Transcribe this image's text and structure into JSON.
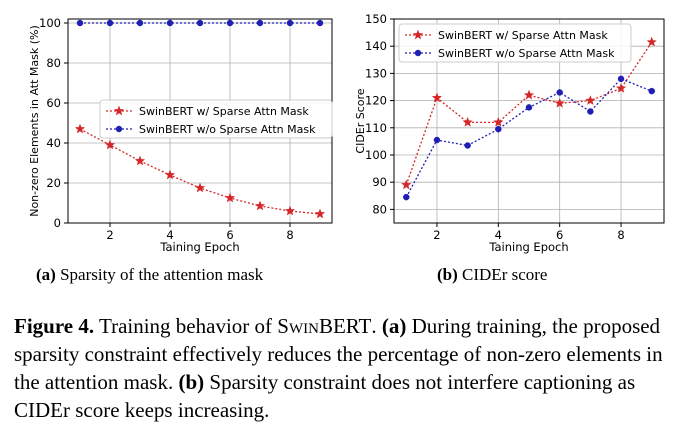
{
  "charts": [
    {
      "type": "line",
      "xlabel": "Taining Epoch",
      "ylabel": "Non-zero Elements in Att Mask (%)",
      "xlim": [
        0.6,
        9.4
      ],
      "ylim": [
        0,
        102
      ],
      "xticks": [
        2,
        4,
        6,
        8
      ],
      "yticks": [
        0,
        20,
        40,
        60,
        80,
        100
      ],
      "grid": true,
      "legend": "center-right",
      "series": [
        {
          "name": "SwinBERT w/ Sparse Attn Mask",
          "color": "#d62728",
          "marker": "star",
          "x": [
            1,
            2,
            3,
            4,
            5,
            6,
            7,
            8,
            9
          ],
          "values": [
            47,
            39,
            31,
            24,
            17.5,
            12.5,
            8.5,
            6,
            4.5
          ]
        },
        {
          "name": "SwinBERT w/o Sparse Attn Mask",
          "color": "#1f1fb4",
          "marker": "circle",
          "x": [
            1,
            2,
            3,
            4,
            5,
            6,
            7,
            8,
            9
          ],
          "values": [
            100,
            100,
            100,
            100,
            100,
            100,
            100,
            100,
            100
          ]
        }
      ]
    },
    {
      "type": "line",
      "xlabel": "Taining Epoch",
      "ylabel": "CIDEr Score",
      "xlim": [
        0.6,
        9.4
      ],
      "ylim": [
        75,
        150
      ],
      "xticks": [
        2,
        4,
        6,
        8
      ],
      "yticks": [
        80,
        90,
        100,
        110,
        120,
        130,
        140,
        150
      ],
      "grid": true,
      "legend": "top-left",
      "series": [
        {
          "name": "SwinBERT w/ Sparse Attn Mask",
          "color": "#d62728",
          "marker": "star",
          "x": [
            1,
            2,
            3,
            4,
            5,
            6,
            7,
            8,
            9
          ],
          "values": [
            89,
            121,
            112,
            112,
            122,
            119,
            120,
            124.5,
            141.5
          ]
        },
        {
          "name": "SwinBERT w/o Sparse Attn Mask",
          "color": "#1f1fb4",
          "marker": "circle",
          "x": [
            1,
            2,
            3,
            4,
            5,
            6,
            7,
            8,
            9
          ],
          "values": [
            84.5,
            105.5,
            103.5,
            109.5,
            117.5,
            123,
            116,
            128,
            123.5
          ]
        }
      ]
    }
  ],
  "subcaptions": {
    "a_label": "(a)",
    "a_text": "Sparsity of the attention mask",
    "b_label": "(b)",
    "b_text": "CIDEr score"
  },
  "caption": {
    "fig_label": "Figure 4.",
    "text1": "Training behavior of",
    "model_sc": "SwinBERT",
    "text2": ".",
    "a_label": "(a)",
    "a_text": "During training, the proposed sparsity constraint effectively reduces the percentage of non-zero elements in the attention mask.",
    "b_label": "(b)",
    "b_text": "Sparsity constraint does not interfere captioning as CIDEr score keeps increasing."
  }
}
